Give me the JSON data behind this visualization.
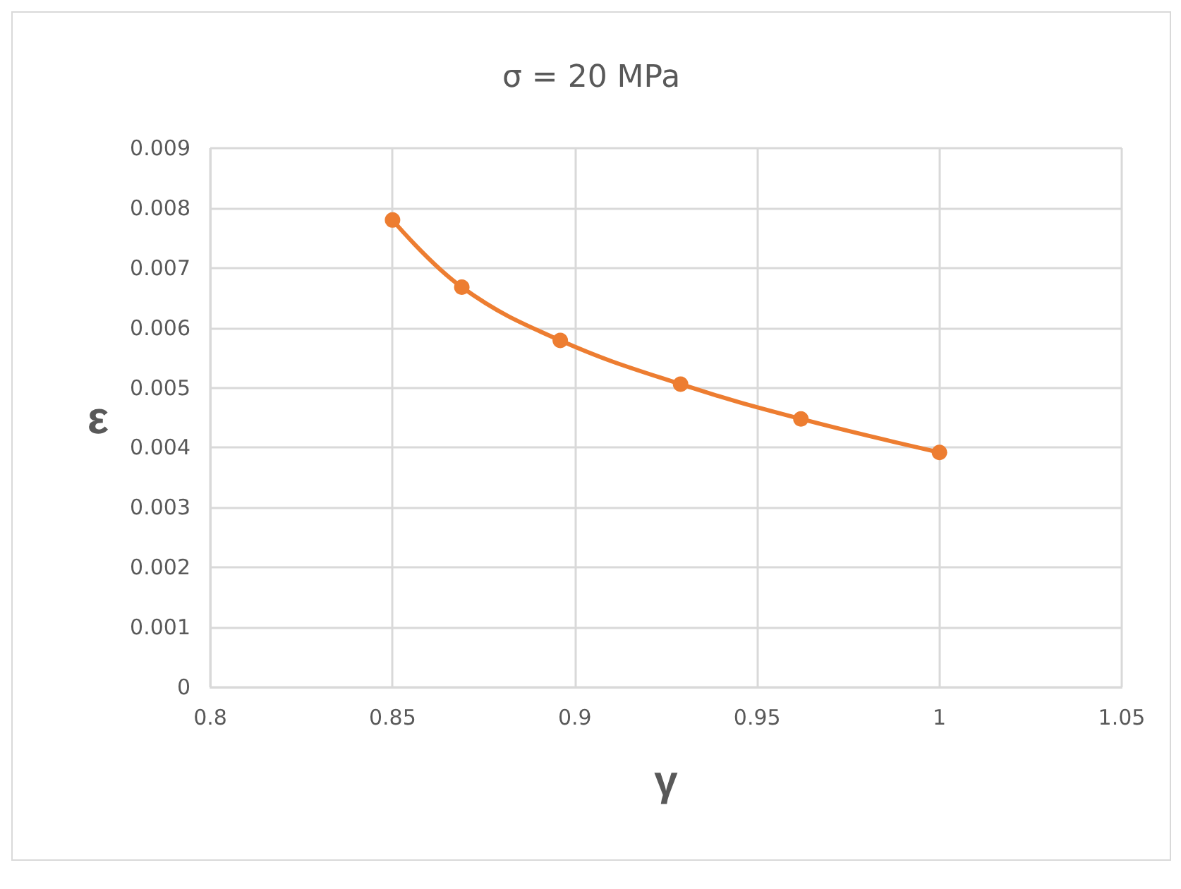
{
  "chart_data": {
    "type": "line",
    "title": "σ = 20 MPa",
    "xlabel": "γ",
    "ylabel": "ε",
    "x": [
      0.85,
      0.869,
      0.896,
      0.929,
      0.962,
      1.0
    ],
    "series": [
      {
        "color": "#ed7d31",
        "values": [
          0.0078,
          0.00668,
          0.00579,
          0.00506,
          0.00448,
          0.00392
        ]
      }
    ],
    "xlim": [
      0.8,
      1.05
    ],
    "xticks": [
      0.8,
      0.85,
      0.9,
      0.95,
      1,
      1.05
    ],
    "ylim": [
      0,
      0.009
    ],
    "yticks": [
      0,
      0.001,
      0.002,
      0.003,
      0.004,
      0.005,
      0.006,
      0.007,
      0.008,
      0.009
    ],
    "grid": true,
    "marker": "circle",
    "line_style": "solid"
  }
}
